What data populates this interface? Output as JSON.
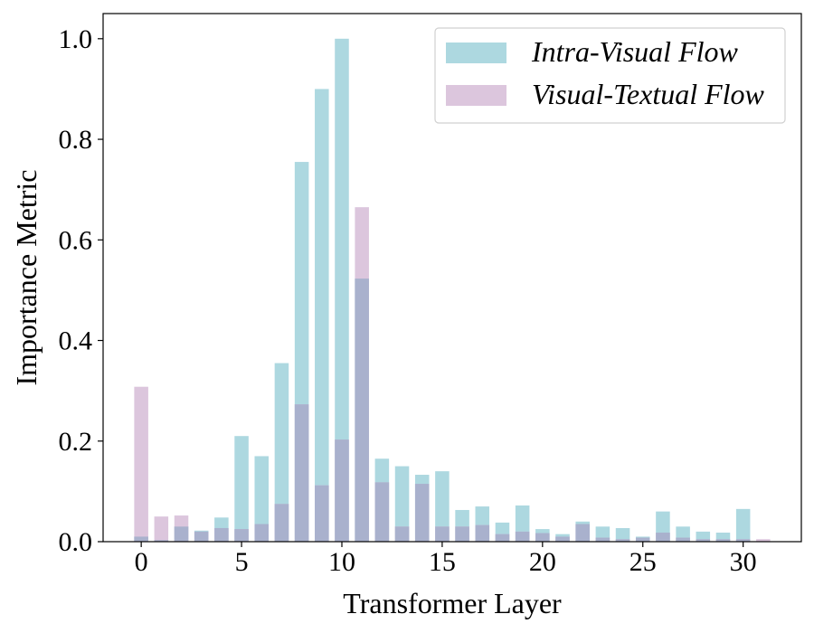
{
  "chart_data": {
    "type": "bar",
    "xlabel": "Transformer Layer",
    "ylabel": "Importance Metric",
    "x_ticks": [
      "0",
      "5",
      "10",
      "15",
      "20",
      "25",
      "30"
    ],
    "y_ticks": [
      "0.0",
      "0.2",
      "0.4",
      "0.6",
      "0.8",
      "1.0"
    ],
    "xlim": [
      -1.9,
      32.9
    ],
    "ylim": [
      0,
      1.05
    ],
    "grid": false,
    "legend_position": "top-right",
    "categories": [
      0,
      1,
      2,
      3,
      4,
      5,
      6,
      7,
      8,
      9,
      10,
      11,
      12,
      13,
      14,
      15,
      16,
      17,
      18,
      19,
      20,
      21,
      22,
      23,
      24,
      25,
      26,
      27,
      28,
      29,
      30,
      31
    ],
    "series": [
      {
        "name": "Intra-Visual Flow",
        "color": "#add8e0",
        "values": [
          0.01,
          0.003,
          0.03,
          0.022,
          0.048,
          0.21,
          0.17,
          0.355,
          0.755,
          0.9,
          1.0,
          0.523,
          0.165,
          0.15,
          0.133,
          0.14,
          0.063,
          0.07,
          0.038,
          0.072,
          0.025,
          0.015,
          0.04,
          0.03,
          0.027,
          0.01,
          0.06,
          0.03,
          0.02,
          0.018,
          0.065,
          0.0
        ]
      },
      {
        "name": "Visual-Textual Flow",
        "color": "#dcc6dd",
        "values": [
          0.308,
          0.05,
          0.052,
          0.02,
          0.027,
          0.025,
          0.035,
          0.075,
          0.273,
          0.112,
          0.203,
          0.665,
          0.118,
          0.03,
          0.115,
          0.03,
          0.03,
          0.033,
          0.015,
          0.02,
          0.017,
          0.01,
          0.035,
          0.008,
          0.005,
          0.008,
          0.018,
          0.008,
          0.005,
          0.005,
          0.005,
          0.005
        ]
      }
    ],
    "overlap_color": "#a9b1cd"
  }
}
